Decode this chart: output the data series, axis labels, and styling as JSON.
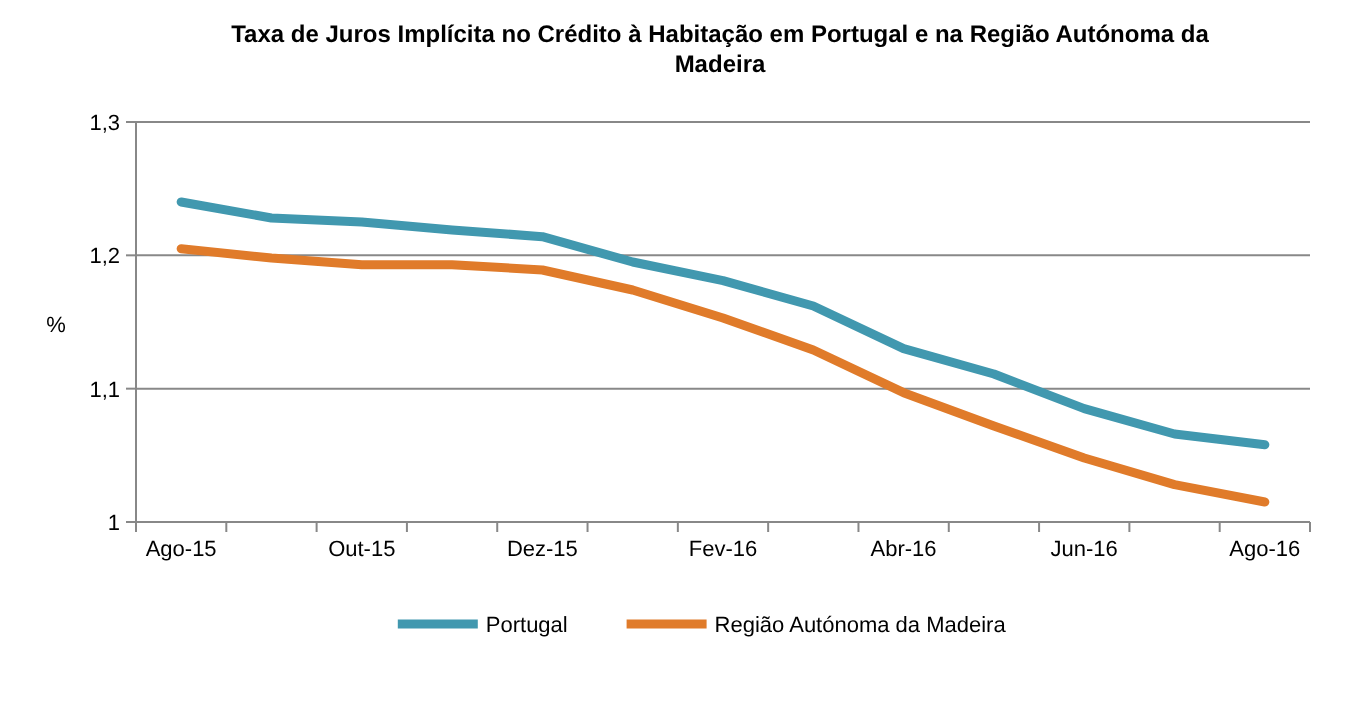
{
  "chart_data": {
    "type": "line",
    "title": "Taxa de Juros Implícita no Crédito à Habitação em Portugal e na Região Autónoma da Madeira",
    "ylabel": "%",
    "categories": [
      "Ago-15",
      null,
      "Out-15",
      null,
      "Dez-15",
      null,
      "Fev-16",
      null,
      "Abr-16",
      null,
      "Jun-16",
      null,
      "Ago-16"
    ],
    "series": [
      {
        "name": "Portugal",
        "color": "#4198af",
        "values": [
          1.24,
          1.228,
          1.225,
          1.219,
          1.214,
          1.195,
          1.181,
          1.162,
          1.13,
          1.111,
          1.085,
          1.066,
          1.058
        ]
      },
      {
        "name": "Região Autónoma da Madeira",
        "color": "#e07b2a",
        "values": [
          1.205,
          1.198,
          1.193,
          1.193,
          1.189,
          1.174,
          1.153,
          1.129,
          1.097,
          1.072,
          1.048,
          1.028,
          1.015
        ]
      }
    ],
    "ylim": [
      1,
      1.3
    ],
    "yticks": [
      {
        "value": 1,
        "label": "1"
      },
      {
        "value": 1.1,
        "label": "1,1"
      },
      {
        "value": 1.2,
        "label": "1,2"
      },
      {
        "value": 1.3,
        "label": "1,3"
      }
    ],
    "grid": "y",
    "legend": "bottom",
    "marker": "none",
    "line_style": "solid"
  }
}
